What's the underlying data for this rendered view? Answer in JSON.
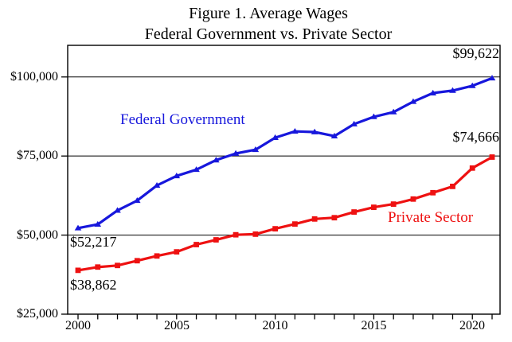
{
  "figure": {
    "title_line1": "Figure 1. Average Wages",
    "title_line2": "Federal Government vs. Private Sector"
  },
  "colors": {
    "federal_blue": "#1717dc",
    "private_red": "#ee1111",
    "axis_black": "#000000",
    "background": "#ffffff"
  },
  "chart_data": {
    "type": "line",
    "title": "Figure 1. Average Wages",
    "subtitle": "Federal Government vs. Private Sector",
    "xlabel": "",
    "ylabel": "",
    "x": [
      2000,
      2001,
      2002,
      2003,
      2004,
      2005,
      2006,
      2007,
      2008,
      2009,
      2010,
      2011,
      2012,
      2013,
      2014,
      2015,
      2016,
      2017,
      2018,
      2019,
      2020,
      2021
    ],
    "series": [
      {
        "name": "Federal Government",
        "color": "#1717dc",
        "marker": "triangle",
        "values": [
          52217,
          53400,
          57800,
          60900,
          65700,
          68700,
          70700,
          73700,
          75800,
          77000,
          80800,
          82800,
          82600,
          81300,
          85100,
          87400,
          88900,
          92200,
          94900,
          95700,
          97200,
          99622
        ]
      },
      {
        "name": "Private Sector",
        "color": "#ee1111",
        "marker": "square",
        "values": [
          38862,
          39900,
          40400,
          41900,
          43400,
          44700,
          47000,
          48500,
          50100,
          50300,
          52000,
          53500,
          55100,
          55500,
          57300,
          58800,
          59800,
          61400,
          63400,
          65400,
          71200,
          74666
        ]
      }
    ],
    "ylim": [
      25000,
      110000
    ],
    "xlim": [
      2000,
      2021
    ],
    "grid": "horizontal",
    "gridline_values": [
      50000,
      75000,
      100000
    ],
    "yticks": [
      {
        "value": 100000,
        "label": "$100,000"
      },
      {
        "value": 75000,
        "label": "$75,000"
      },
      {
        "value": 50000,
        "label": "$50,000"
      },
      {
        "value": 25000,
        "label": "$25,000"
      }
    ],
    "xticks": [
      {
        "value": 2000,
        "label": "2000"
      },
      {
        "value": 2005,
        "label": "2005"
      },
      {
        "value": 2010,
        "label": "2010"
      },
      {
        "value": 2015,
        "label": "2015"
      },
      {
        "value": 2020,
        "label": "2020"
      }
    ],
    "legend_position": "inline-labels",
    "annotations": [
      {
        "text": "$52,217",
        "series": "Federal Government",
        "year": 2000
      },
      {
        "text": "$38,862",
        "series": "Private Sector",
        "year": 2000
      },
      {
        "text": "$99,622",
        "series": "Federal Government",
        "year": 2021
      },
      {
        "text": "$74,666",
        "series": "Private Sector",
        "year": 2021
      }
    ]
  }
}
